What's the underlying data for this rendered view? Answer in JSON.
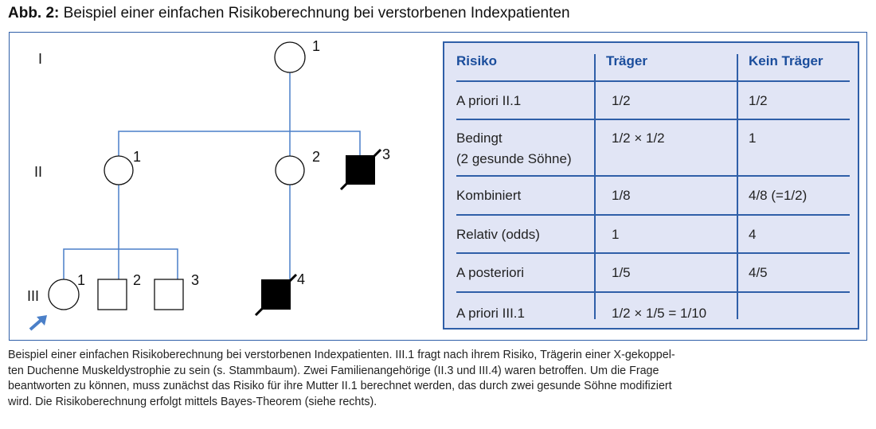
{
  "title": {
    "label": "Abb. 2:",
    "text": "Beispiel einer einfachen Risikoberechnung bei verstorbenen Indexpatienten"
  },
  "pedigree": {
    "generations": [
      "I",
      "II",
      "III"
    ],
    "numbers": {
      "I1": "1",
      "II1": "1",
      "II2": "2",
      "II3": "3",
      "III1": "1",
      "III2": "2",
      "III3": "3",
      "III4": "4"
    },
    "line_color": "#4a7fc8",
    "arrow_color": "#4a7fc8",
    "affected_fill": "#000000"
  },
  "table": {
    "headers": [
      "Risiko",
      "Träger",
      "Kein Träger"
    ],
    "rows": [
      {
        "label": "A priori II.1",
        "carrier": "1/2",
        "non_carrier": "1/2"
      },
      {
        "label": "Bedingt",
        "label2": "(2 gesunde Söhne)",
        "carrier": "1/2 × 1/2",
        "non_carrier": "1"
      },
      {
        "label": "Kombiniert",
        "carrier": "1/8",
        "non_carrier": "4/8 (=1/2)"
      },
      {
        "label": "Relativ (odds)",
        "carrier": "1",
        "non_carrier": "4"
      },
      {
        "label": "A posteriori",
        "carrier": "1/5",
        "non_carrier": "4/5"
      },
      {
        "label": "A priori III.1",
        "carrier": "1/2 × 1/5 = 1/10",
        "non_carrier": ""
      }
    ],
    "header_color": "#1a4d9c",
    "background": "#e1e5f5"
  },
  "caption": [
    "Beispiel einer einfachen Risikoberechnung bei verstorbenen Indexpatienten. III.1 fragt nach ihrem Risiko, Trägerin einer X-gekoppel-",
    "ten Duchenne Muskeldystrophie zu sein (s. Stammbaum). Zwei Familienangehörige (II.3 und III.4) waren betroffen. Um die Frage",
    "beantworten zu können, muss zunächst das Risiko für ihre Mutter II.1 berechnet werden, das durch zwei gesunde Söhne modifiziert",
    "wird. Die Risikoberechnung erfolgt mittels Bayes-Theorem (siehe rechts)."
  ]
}
